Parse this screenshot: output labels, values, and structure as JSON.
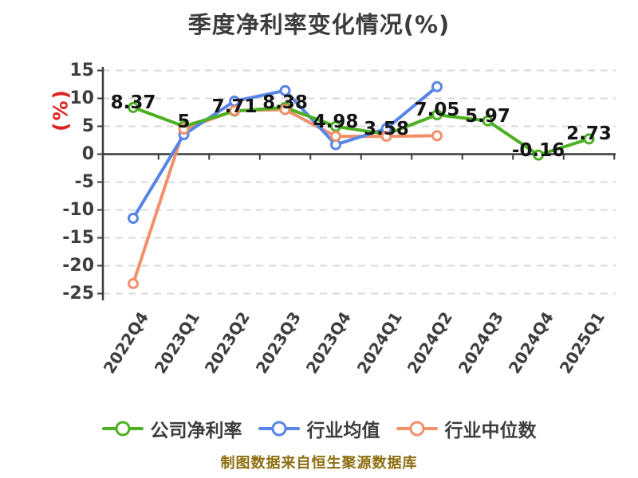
{
  "title": "季度净利率变化情况(%)",
  "footer": "制图数据来自恒生聚源数据库",
  "y_axis": {
    "unit_label": "(%)",
    "unit_color": "#e02020",
    "ticks": [
      15,
      10,
      5,
      0,
      -5,
      -10,
      -15,
      -20,
      -25
    ],
    "min": -25,
    "max": 15
  },
  "chart_data": {
    "type": "line",
    "title": "季度净利率变化情况(%)",
    "xlabel": "",
    "ylabel": "(%)",
    "ylim": [
      -25,
      15
    ],
    "y_tick_step": 5,
    "grid": "horizontal dashed",
    "legend_position": "bottom",
    "categories": [
      "2022Q4",
      "2023Q1",
      "2023Q2",
      "2023Q3",
      "2023Q4",
      "2024Q1",
      "2024Q2",
      "2024Q3",
      "2024Q4",
      "2025Q1"
    ],
    "series": [
      {
        "key": "company-net-margin",
        "name": "公司净利率",
        "color": "#4cb122",
        "values": [
          8.37,
          5,
          7.71,
          8.38,
          4.98,
          3.58,
          7.05,
          5.97,
          -0.16,
          2.73
        ],
        "point_labels": [
          "8.37",
          "5",
          "7.71",
          "8.38",
          "4.98",
          "3.58",
          "7.05",
          "5.97",
          "-0.16",
          "2.73"
        ]
      },
      {
        "key": "industry-mean",
        "name": "行业均值",
        "color": "#5585e7",
        "values": [
          -11.5,
          3.5,
          9.5,
          11.4,
          1.7,
          4.6,
          12.1,
          null,
          null,
          null
        ],
        "point_labels": null
      },
      {
        "key": "industry-median",
        "name": "行业中位数",
        "color": "#f29069",
        "values": [
          -23.2,
          4.5,
          7.8,
          8.0,
          3.2,
          3.2,
          3.3,
          null,
          null,
          null
        ],
        "point_labels": null
      }
    ]
  }
}
